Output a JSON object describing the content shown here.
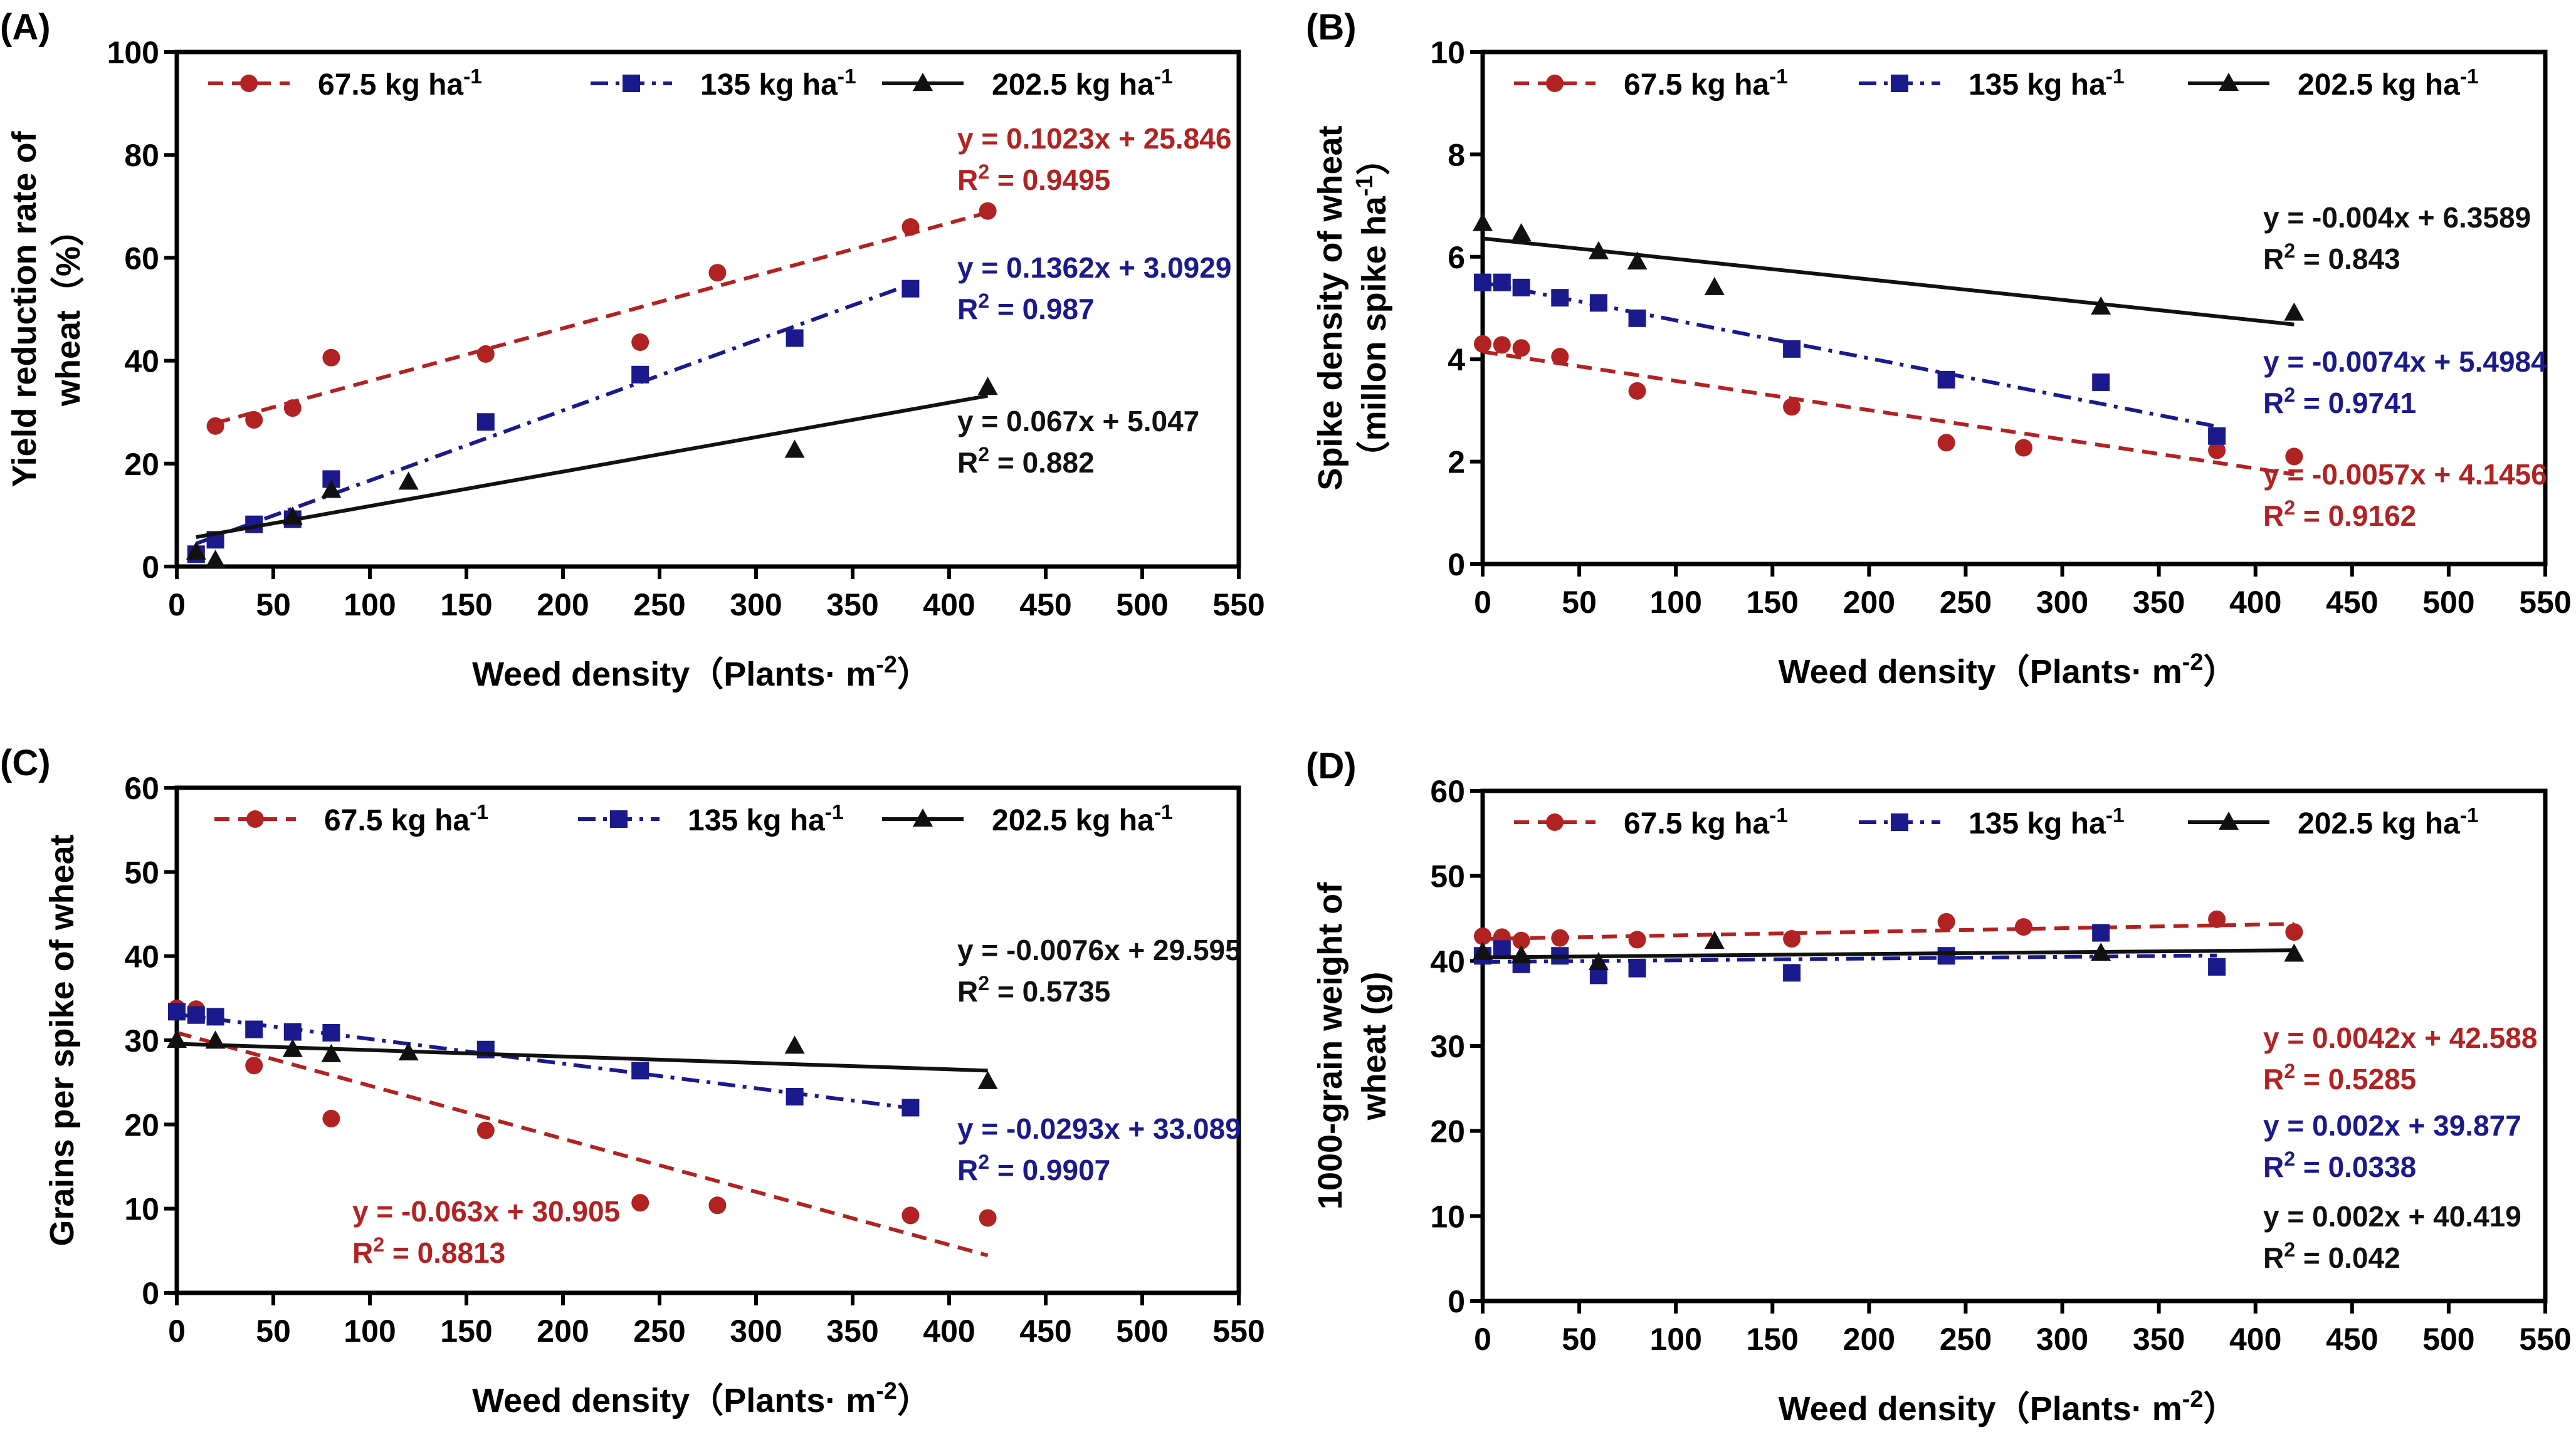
{
  "colors": {
    "low": "#b22222",
    "mid": "#1a1a8c",
    "high": "#111111"
  },
  "series_style": {
    "low": {
      "marker": "circle",
      "line": "dashed"
    },
    "mid": {
      "marker": "square",
      "line": "dash-dot"
    },
    "high": {
      "marker": "triangle",
      "line": "solid"
    }
  },
  "legend_labels": [
    {
      "key": "low",
      "text": "67.5 kg ha",
      "sup": "-1"
    },
    {
      "key": "mid",
      "text": "135 kg ha",
      "sup": "-1"
    },
    {
      "key": "high",
      "text": "202.5 kg ha",
      "sup": "-1"
    }
  ],
  "chart_data": [
    {
      "panel": "(A)",
      "type": "scatter",
      "ylabel": [
        "Yield reduction rate of",
        "wheat（%）"
      ],
      "xlabel": "Weed density（Plants· m-2）",
      "xlim": [
        0,
        550
      ],
      "ylim": [
        0,
        100
      ],
      "xticks": [
        0,
        50,
        100,
        150,
        200,
        250,
        300,
        350,
        400,
        450,
        500,
        550
      ],
      "yticks": [
        0,
        20,
        40,
        60,
        80,
        100
      ],
      "legend": "top",
      "series": [
        {
          "name": "67.5 kg ha-1",
          "key": "low",
          "x": [
            20,
            40,
            60,
            80,
            160,
            240,
            280,
            380,
            420
          ],
          "y": [
            27.3,
            28.5,
            30.8,
            40.6,
            41.3,
            43.6,
            57.1,
            66.0,
            69.1
          ],
          "fit": {
            "slope": 0.1023,
            "intercept": 25.846,
            "range": [
              20,
              420
            ]
          },
          "equation": "y = 0.1023x + 25.846",
          "r2": "= 0.9495"
        },
        {
          "name": "135 kg ha-1",
          "key": "mid",
          "x": [
            10,
            20,
            40,
            60,
            80,
            160,
            240,
            320,
            380
          ],
          "y": [
            2.4,
            5.2,
            8.2,
            9.2,
            17.0,
            28.1,
            37.3,
            44.4,
            54.0
          ],
          "fit": {
            "slope": 0.1362,
            "intercept": 3.0929,
            "range": [
              10,
              380
            ]
          },
          "equation": "y = 0.1362x + 3.0929",
          "r2": "= 0.987"
        },
        {
          "name": "202.5 kg ha-1",
          "key": "high",
          "x": [
            10,
            20,
            60,
            80,
            120,
            320,
            420
          ],
          "y": [
            2.8,
            1.2,
            9.6,
            14.8,
            16.4,
            22.6,
            34.8
          ],
          "fit": {
            "slope": 0.067,
            "intercept": 5.047,
            "range": [
              10,
              420
            ]
          },
          "equation": "y = 0.067x + 5.047",
          "r2": "= 0.882"
        }
      ]
    },
    {
      "panel": "(B)",
      "type": "scatter",
      "ylabel": [
        "Spike density of wheat",
        "（millon spike ha-1）"
      ],
      "xlabel": "Weed density（Plants· m-2）",
      "xlim": [
        0,
        550
      ],
      "ylim": [
        0,
        10
      ],
      "xticks": [
        0,
        50,
        100,
        150,
        200,
        250,
        300,
        350,
        400,
        450,
        500,
        550
      ],
      "yticks": [
        0,
        2,
        4,
        6,
        8,
        10
      ],
      "legend": "top",
      "series": [
        {
          "name": "67.5 kg ha-1",
          "key": "low",
          "x": [
            0,
            10,
            20,
            40,
            80,
            160,
            240,
            280,
            380,
            420
          ],
          "y": [
            4.3,
            4.28,
            4.22,
            4.05,
            3.38,
            3.07,
            2.37,
            2.27,
            2.22,
            2.1
          ],
          "fit": {
            "slope": -0.0057,
            "intercept": 4.1456,
            "range": [
              0,
              420
            ]
          },
          "equation": "y = -0.0057x + 4.1456",
          "r2": "= 0.9162"
        },
        {
          "name": "135 kg ha-1",
          "key": "mid",
          "x": [
            0,
            10,
            20,
            40,
            60,
            80,
            160,
            240,
            320,
            380
          ],
          "y": [
            5.5,
            5.5,
            5.4,
            5.2,
            5.1,
            4.8,
            4.2,
            3.6,
            3.55,
            2.5
          ],
          "fit": {
            "slope": -0.0074,
            "intercept": 5.4984,
            "range": [
              0,
              380
            ]
          },
          "equation": "y = -0.0074x + 5.4984",
          "r2": "= 0.9741"
        },
        {
          "name": "202.5 kg ha-1",
          "key": "high",
          "x": [
            0,
            20,
            60,
            80,
            120,
            320,
            420
          ],
          "y": [
            6.65,
            6.45,
            6.1,
            5.9,
            5.4,
            5.02,
            4.9
          ],
          "fit": {
            "slope": -0.004,
            "intercept": 6.3589,
            "range": [
              0,
              420
            ]
          },
          "equation": "y = -0.004x + 6.3589",
          "r2": "= 0.843"
        }
      ]
    },
    {
      "panel": "(C)",
      "type": "scatter",
      "ylabel": [
        "Grains per spike of wheat"
      ],
      "xlabel": "Weed density（Plants· m-2）",
      "xlim": [
        0,
        550
      ],
      "ylim": [
        0,
        60
      ],
      "xticks": [
        0,
        50,
        100,
        150,
        200,
        250,
        300,
        350,
        400,
        450,
        500,
        550
      ],
      "yticks": [
        0,
        10,
        20,
        30,
        40,
        50,
        60
      ],
      "legend": "top",
      "series": [
        {
          "name": "67.5 kg ha-1",
          "key": "low",
          "x": [
            0,
            10,
            40,
            80,
            160,
            240,
            280,
            380,
            420
          ],
          "y": [
            33.8,
            33.7,
            27.0,
            20.7,
            19.3,
            10.7,
            10.4,
            9.2,
            8.9
          ],
          "fit": {
            "slope": -0.063,
            "intercept": 30.905,
            "range": [
              0,
              420
            ]
          },
          "equation": "y = -0.063x + 30.905",
          "r2": "= 0.8813"
        },
        {
          "name": "135 kg ha-1",
          "key": "mid",
          "x": [
            0,
            10,
            20,
            40,
            60,
            80,
            160,
            240,
            320,
            380
          ],
          "y": [
            33.4,
            33.0,
            32.8,
            31.3,
            31.0,
            30.9,
            28.9,
            26.4,
            23.3,
            22.0
          ],
          "fit": {
            "slope": -0.0293,
            "intercept": 33.089,
            "range": [
              0,
              380
            ]
          },
          "equation": "y = -0.0293x + 33.089",
          "r2": "= 0.9907"
        },
        {
          "name": "202.5 kg ha-1",
          "key": "high",
          "x": [
            0,
            20,
            60,
            80,
            120,
            320,
            420
          ],
          "y": [
            30.0,
            29.9,
            28.9,
            28.3,
            28.5,
            29.3,
            25.1
          ],
          "fit": {
            "slope": -0.0076,
            "intercept": 29.595,
            "range": [
              0,
              420
            ]
          },
          "equation": "y = -0.0076x + 29.595",
          "r2": "= 0.5735"
        }
      ]
    },
    {
      "panel": "(D)",
      "type": "scatter",
      "ylabel": [
        "1000-grain weight of",
        "wheat (g)"
      ],
      "xlabel": "Weed density（Plants· m-2）",
      "xlim": [
        0,
        550
      ],
      "ylim": [
        0,
        60
      ],
      "xticks": [
        0,
        50,
        100,
        150,
        200,
        250,
        300,
        350,
        400,
        450,
        500,
        550
      ],
      "yticks": [
        0,
        10,
        20,
        30,
        40,
        50,
        60
      ],
      "legend": "top",
      "series": [
        {
          "name": "67.5 kg ha-1",
          "key": "low",
          "x": [
            0,
            10,
            20,
            40,
            80,
            160,
            240,
            280,
            380,
            420
          ],
          "y": [
            42.9,
            42.8,
            42.4,
            42.7,
            42.5,
            42.6,
            44.6,
            44.0,
            44.9,
            43.4
          ],
          "fit": {
            "slope": 0.0042,
            "intercept": 42.588,
            "range": [
              0,
              420
            ]
          },
          "equation": "y = 0.0042x + 42.588",
          "r2": "= 0.5285"
        },
        {
          "name": "135 kg ha-1",
          "key": "mid",
          "x": [
            0,
            10,
            20,
            40,
            60,
            80,
            160,
            240,
            320,
            380
          ],
          "y": [
            40.6,
            41.4,
            39.6,
            40.6,
            38.3,
            39.1,
            38.6,
            40.6,
            43.3,
            39.3
          ],
          "fit": {
            "slope": 0.002,
            "intercept": 39.877,
            "range": [
              0,
              380
            ]
          },
          "equation": "y = 0.002x + 39.877",
          "r2": "= 0.0338"
        },
        {
          "name": "202.5 kg ha-1",
          "key": "high",
          "x": [
            0,
            20,
            60,
            120,
            320,
            420
          ],
          "y": [
            41.0,
            40.6,
            39.8,
            42.3,
            40.9,
            40.8
          ],
          "fit": {
            "slope": 0.002,
            "intercept": 40.419,
            "range": [
              0,
              420
            ]
          },
          "equation": "y = 0.002x + 40.419",
          "r2": "= 0.042"
        }
      ]
    }
  ]
}
